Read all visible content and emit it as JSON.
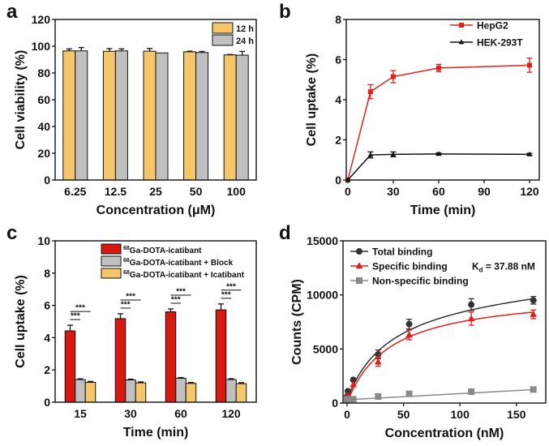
{
  "chart_data": [
    {
      "panel": "a",
      "type": "bar",
      "xlabel": "Concentration (μM)",
      "ylabel": "Cell viability (%)",
      "ylim": [
        0,
        120
      ],
      "yticks": [
        0,
        20,
        40,
        60,
        80,
        100,
        120
      ],
      "categories": [
        "6.25",
        "12.5",
        "25",
        "50",
        "100"
      ],
      "legend": "top-right",
      "series": [
        {
          "name": "12 h",
          "color": "#f5c76a",
          "values": [
            96.5,
            96.2,
            96.3,
            95.8,
            93.5
          ],
          "err": [
            1.5,
            2.0,
            2.0,
            0.5,
            0.3
          ]
        },
        {
          "name": "24 h",
          "color": "#c0c0c0",
          "values": [
            96.5,
            96.5,
            95.0,
            95.3,
            93.3
          ],
          "err": [
            2.5,
            1.5,
            0,
            0.8,
            2.8
          ]
        }
      ]
    },
    {
      "panel": "b",
      "type": "line",
      "xlabel": "Time (min)",
      "ylabel": "Cell uptake (%)",
      "xlim": [
        -1,
        126.4
      ],
      "ylim": [
        0,
        8
      ],
      "xticks": [
        0,
        30,
        60,
        90,
        120
      ],
      "yticks": [
        0,
        2,
        4,
        6,
        8
      ],
      "legend": "top-right",
      "series": [
        {
          "name": "HepG2",
          "color": "#e0201b",
          "marker": "square",
          "x": [
            0,
            15,
            30,
            60,
            120
          ],
          "y": [
            0,
            4.4,
            5.15,
            5.58,
            5.72
          ],
          "err": [
            0,
            0.35,
            0.3,
            0.18,
            0.35
          ]
        },
        {
          "name": "HEK-293T",
          "color": "#111111",
          "marker": "triangle",
          "x": [
            0,
            15,
            30,
            60,
            120
          ],
          "y": [
            0,
            1.25,
            1.28,
            1.3,
            1.28
          ],
          "err": [
            0,
            0.15,
            0.12,
            0.05,
            0.05
          ]
        }
      ]
    },
    {
      "panel": "c",
      "type": "bar",
      "xlabel": "Time (min)",
      "ylabel": "Cell uptake (%)",
      "ylim": [
        0,
        10
      ],
      "yticks": [
        0,
        2,
        4,
        6,
        8,
        10
      ],
      "categories": [
        "15",
        "30",
        "60",
        "120"
      ],
      "legend": "top-right",
      "significance": "***",
      "series": [
        {
          "name_sup": "68",
          "name": "Ga-DOTA-icatibant",
          "color": "#d7190f",
          "values": [
            4.42,
            5.18,
            5.6,
            5.72
          ],
          "err": [
            0.35,
            0.3,
            0.18,
            0.37
          ]
        },
        {
          "name_sup": "68",
          "name": "Ga-DOTA-icatibant + Block",
          "color": "#c0c0c0",
          "values": [
            1.4,
            1.38,
            1.48,
            1.4
          ],
          "err": [
            0.05,
            0.05,
            0.05,
            0.06
          ]
        },
        {
          "name_sup": "68",
          "name": "Ga-DOTA-icatibant + Icatibant",
          "color": "#f5c76a",
          "values": [
            1.23,
            1.2,
            1.17,
            1.15
          ],
          "err": [
            0.06,
            0.06,
            0.05,
            0.06
          ]
        }
      ]
    },
    {
      "panel": "d",
      "type": "scatter",
      "xlabel": "Concentration (nM)",
      "ylabel": "Counts (CPM)",
      "xlim": [
        -3.6,
        176
      ],
      "ylim": [
        0,
        15000
      ],
      "xticks": [
        0,
        50,
        100,
        150
      ],
      "yticks": [
        0,
        5000,
        10000,
        15000
      ],
      "legend": "top-left",
      "annotation": {
        "text": "K",
        "sub": "d",
        "rest": " = 37.88 nM",
        "value_nM": 37.88
      },
      "series": [
        {
          "name": "Total binding",
          "color": "#333333",
          "marker": "circle",
          "x": [
            0,
            0.7,
            5.5,
            27.5,
            55,
            110,
            165
          ],
          "y": [
            600,
            1100,
            2150,
            4500,
            7300,
            9100,
            9500
          ],
          "err": [
            0,
            0,
            0,
            400,
            450,
            550,
            350
          ],
          "fit": {
            "bmax": 10330,
            "kd": 37.88,
            "ns_intercept": 300,
            "ns_slope": 5.7
          }
        },
        {
          "name": "Specific binding",
          "color": "#e0201b",
          "marker": "triangle",
          "x": [
            0,
            0.7,
            5.5,
            27.5,
            55,
            110,
            165
          ],
          "y": [
            300,
            700,
            1700,
            3800,
            6300,
            7800,
            8200
          ],
          "err": [
            0,
            0,
            0,
            400,
            450,
            600,
            400
          ],
          "fit": {
            "bmax": 10330,
            "kd": 37.88
          }
        },
        {
          "name": "Non-specific binding",
          "color": "#8a8a8a",
          "marker": "square",
          "x": [
            0,
            0.7,
            5.5,
            27.5,
            55,
            110,
            165
          ],
          "y": [
            300,
            350,
            350,
            600,
            850,
            1050,
            1250
          ],
          "err": [
            0,
            0,
            0,
            0,
            0,
            0,
            0
          ],
          "fit": {
            "ns_intercept": 300,
            "ns_slope": 5.7
          }
        }
      ]
    }
  ]
}
